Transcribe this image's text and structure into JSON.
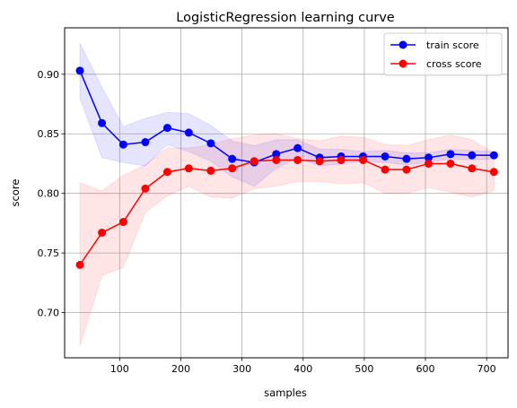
{
  "chart_data": {
    "type": "line",
    "title": "LogisticRegression learning curve",
    "xlabel": "samples",
    "ylabel": "score",
    "xlim": [
      10,
      735
    ],
    "ylim": [
      0.662,
      0.939
    ],
    "xticks": [
      100,
      200,
      300,
      400,
      500,
      600,
      700
    ],
    "yticks": [
      0.7,
      0.75,
      0.8,
      0.85,
      0.9
    ],
    "xtick_labels": [
      "100",
      "200",
      "300",
      "400",
      "500",
      "600",
      "700"
    ],
    "ytick_labels": [
      "0.70",
      "0.75",
      "0.80",
      "0.85",
      "0.90"
    ],
    "grid": true,
    "legend_position": "upper right",
    "x": [
      35,
      71,
      106,
      142,
      178,
      213,
      249,
      284,
      320,
      356,
      391,
      427,
      462,
      498,
      534,
      569,
      605,
      641,
      676,
      712
    ],
    "series": [
      {
        "name": "train score",
        "color": "#0000ff",
        "values": [
          0.903,
          0.859,
          0.841,
          0.843,
          0.855,
          0.851,
          0.842,
          0.829,
          0.826,
          0.833,
          0.838,
          0.83,
          0.831,
          0.831,
          0.831,
          0.829,
          0.83,
          0.833,
          0.832,
          0.832
        ],
        "band_upper": [
          0.926,
          0.889,
          0.856,
          0.863,
          0.868,
          0.867,
          0.857,
          0.844,
          0.84,
          0.845,
          0.845,
          0.837,
          0.837,
          0.835,
          0.836,
          0.834,
          0.834,
          0.837,
          0.836,
          0.835
        ],
        "band_lower": [
          0.88,
          0.83,
          0.826,
          0.823,
          0.841,
          0.835,
          0.827,
          0.814,
          0.806,
          0.821,
          0.83,
          0.823,
          0.825,
          0.827,
          0.826,
          0.824,
          0.826,
          0.829,
          0.828,
          0.829
        ]
      },
      {
        "name": "cross score",
        "color": "#ff0000",
        "values": [
          0.74,
          0.767,
          0.776,
          0.804,
          0.818,
          0.821,
          0.819,
          0.821,
          0.827,
          0.828,
          0.828,
          0.827,
          0.828,
          0.828,
          0.82,
          0.82,
          0.825,
          0.825,
          0.821,
          0.818
        ],
        "band_upper": [
          0.809,
          0.802,
          0.815,
          0.824,
          0.838,
          0.838,
          0.841,
          0.846,
          0.849,
          0.85,
          0.846,
          0.844,
          0.848,
          0.847,
          0.841,
          0.84,
          0.845,
          0.849,
          0.845,
          0.834
        ],
        "band_lower": [
          0.672,
          0.731,
          0.738,
          0.784,
          0.798,
          0.806,
          0.797,
          0.796,
          0.804,
          0.806,
          0.81,
          0.81,
          0.808,
          0.809,
          0.8,
          0.8,
          0.805,
          0.801,
          0.797,
          0.802
        ]
      }
    ]
  }
}
